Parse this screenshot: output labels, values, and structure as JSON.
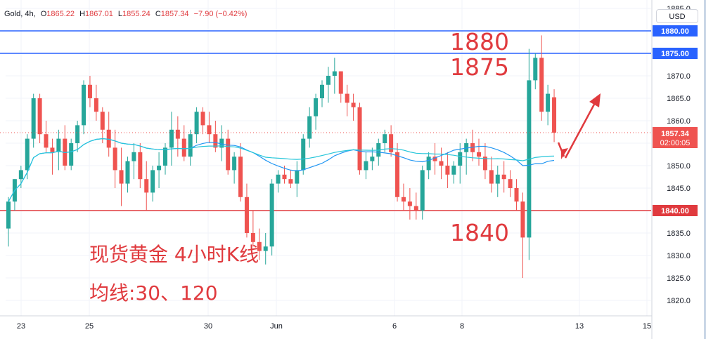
{
  "legend": {
    "symbol": "Gold, 4h,",
    "o_label": "O",
    "open": "1865.22",
    "h_label": "H",
    "high": "1867.01",
    "l_label": "L",
    "low": "1855.24",
    "c_label": "C",
    "close": "1857.34",
    "change": "−7.90 (−0.42%)"
  },
  "currency": "USD",
  "annotations": {
    "level_1880": "1880",
    "level_1875": "1875",
    "level_1840": "1840",
    "title": "现货黄金 4小时K线",
    "ma_note": "均线:30、120"
  },
  "price_tag": {
    "price": "1857.34",
    "countdown": "02:00:05"
  },
  "colors": {
    "up": "#26a69a",
    "down": "#ef5350",
    "blue_line": "#2962ff",
    "red_line": "#e03a3e",
    "ma_fast": "#2196f3",
    "ma_slow": "#26c6da"
  },
  "chart_data": {
    "type": "candlestick",
    "title": "",
    "y_axis_ticks": [
      1820,
      1825,
      1830,
      1835,
      1840,
      1845,
      1850,
      1855,
      1860,
      1865,
      1870,
      1875,
      1880,
      1885
    ],
    "ylim": [
      1818,
      1886
    ],
    "x_axis_ticks": [
      "23",
      "25",
      "30",
      "Jun",
      "6",
      "8",
      "13",
      "15"
    ],
    "horizontal_levels": [
      {
        "price": 1880.0,
        "label": "1880.00",
        "color": "blue"
      },
      {
        "price": 1875.0,
        "label": "1875.00",
        "color": "blue"
      },
      {
        "price": 1840.0,
        "label": "1840.00",
        "color": "red"
      }
    ],
    "last_price": 1857.34,
    "candles": [
      [
        1836,
        1843,
        1832,
        1842
      ],
      [
        1842,
        1847,
        1840,
        1847
      ],
      [
        1847,
        1850,
        1845,
        1849
      ],
      [
        1849,
        1857,
        1847,
        1856
      ],
      [
        1856,
        1866,
        1854,
        1865
      ],
      [
        1865,
        1866,
        1855,
        1857
      ],
      [
        1857,
        1860,
        1853,
        1854
      ],
      [
        1854,
        1856,
        1848,
        1853
      ],
      [
        1853,
        1858,
        1849,
        1856
      ],
      [
        1856,
        1859,
        1849,
        1850
      ],
      [
        1850,
        1856,
        1849,
        1855
      ],
      [
        1855,
        1860,
        1853,
        1859
      ],
      [
        1859,
        1869,
        1857,
        1868
      ],
      [
        1868,
        1870,
        1863,
        1865
      ],
      [
        1865,
        1868,
        1860,
        1862
      ],
      [
        1862,
        1863,
        1855,
        1858
      ],
      [
        1858,
        1862,
        1852,
        1854
      ],
      [
        1854,
        1858,
        1845,
        1849
      ],
      [
        1849,
        1854,
        1841,
        1846
      ],
      [
        1846,
        1852,
        1844,
        1851
      ],
      [
        1851,
        1855,
        1847,
        1853
      ],
      [
        1853,
        1855,
        1845,
        1847
      ],
      [
        1847,
        1851,
        1840,
        1844
      ],
      [
        1844,
        1850,
        1842,
        1849
      ],
      [
        1849,
        1853,
        1845,
        1850
      ],
      [
        1850,
        1855,
        1848,
        1854
      ],
      [
        1854,
        1862,
        1850,
        1858
      ],
      [
        1858,
        1861,
        1852,
        1856
      ],
      [
        1856,
        1859,
        1851,
        1852
      ],
      [
        1852,
        1858,
        1850,
        1857
      ],
      [
        1857,
        1863,
        1855,
        1862
      ],
      [
        1862,
        1863,
        1857,
        1859
      ],
      [
        1859,
        1862,
        1855,
        1857
      ],
      [
        1857,
        1860,
        1853,
        1854
      ],
      [
        1854,
        1859,
        1851,
        1856
      ],
      [
        1856,
        1858,
        1848,
        1849
      ],
      [
        1849,
        1853,
        1846,
        1852
      ],
      [
        1852,
        1855,
        1842,
        1843
      ],
      [
        1843,
        1846,
        1834,
        1835
      ],
      [
        1835,
        1840,
        1832,
        1833
      ],
      [
        1833,
        1836,
        1829,
        1831
      ],
      [
        1831,
        1835,
        1828,
        1832
      ],
      [
        1832,
        1847,
        1830,
        1846
      ],
      [
        1846,
        1849,
        1844,
        1848
      ],
      [
        1848,
        1850,
        1846,
        1847
      ],
      [
        1847,
        1849,
        1845,
        1846
      ],
      [
        1846,
        1851,
        1843,
        1849
      ],
      [
        1849,
        1857,
        1848,
        1856
      ],
      [
        1856,
        1863,
        1854,
        1861
      ],
      [
        1861,
        1866,
        1858,
        1865
      ],
      [
        1865,
        1869,
        1863,
        1868
      ],
      [
        1868,
        1872,
        1864,
        1870
      ],
      [
        1870,
        1874,
        1866,
        1871
      ],
      [
        1871,
        1871,
        1864,
        1866
      ],
      [
        1866,
        1868,
        1861,
        1864
      ],
      [
        1864,
        1866,
        1860,
        1863
      ],
      [
        1863,
        1864,
        1848,
        1849
      ],
      [
        1849,
        1853,
        1847,
        1851
      ],
      [
        1851,
        1854,
        1849,
        1852
      ],
      [
        1852,
        1856,
        1850,
        1855
      ],
      [
        1855,
        1858,
        1853,
        1857
      ],
      [
        1857,
        1859,
        1852,
        1853
      ],
      [
        1853,
        1855,
        1842,
        1843
      ],
      [
        1843,
        1846,
        1840,
        1842
      ],
      [
        1842,
        1845,
        1838,
        1841
      ],
      [
        1841,
        1844,
        1838,
        1840
      ],
      [
        1840,
        1850,
        1838,
        1849
      ],
      [
        1849,
        1853,
        1847,
        1852
      ],
      [
        1852,
        1855,
        1848,
        1851
      ],
      [
        1851,
        1854,
        1847,
        1850
      ],
      [
        1850,
        1853,
        1845,
        1848
      ],
      [
        1848,
        1851,
        1846,
        1850
      ],
      [
        1850,
        1855,
        1846,
        1853
      ],
      [
        1853,
        1856,
        1848,
        1855
      ],
      [
        1855,
        1858,
        1851,
        1853
      ],
      [
        1853,
        1856,
        1850,
        1852
      ],
      [
        1852,
        1855,
        1847,
        1849
      ],
      [
        1849,
        1852,
        1844,
        1846
      ],
      [
        1846,
        1850,
        1843,
        1848
      ],
      [
        1848,
        1851,
        1844,
        1847
      ],
      [
        1847,
        1849,
        1843,
        1845
      ],
      [
        1845,
        1847,
        1840,
        1842
      ],
      [
        1842,
        1844,
        1825,
        1834
      ],
      [
        1834,
        1876,
        1829,
        1869
      ],
      [
        1869,
        1875,
        1867,
        1874
      ],
      [
        1874,
        1879,
        1860,
        1862
      ],
      [
        1862,
        1868,
        1859,
        1866
      ],
      [
        1865.22,
        1867.01,
        1855.24,
        1857.34
      ]
    ]
  }
}
